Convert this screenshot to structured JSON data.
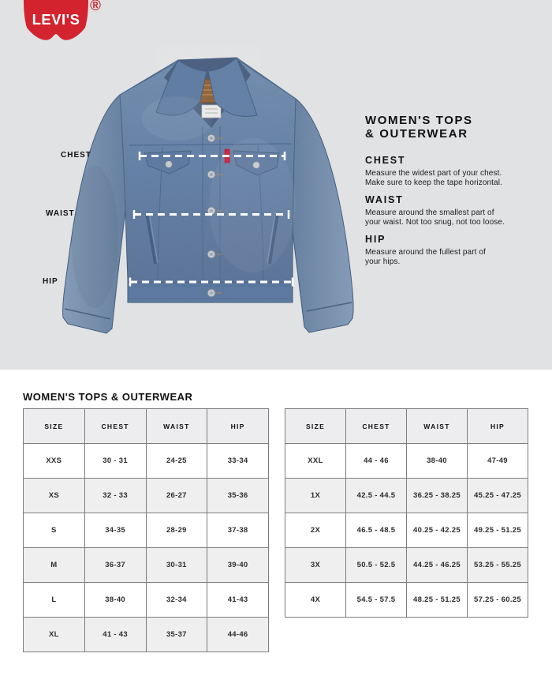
{
  "colors": {
    "hero_background": "#e0e2e3",
    "brand_red": "#d2232e",
    "table_stripe": "#efeff0",
    "table_border": "#7d7d7d",
    "text": "#111111"
  },
  "brand": {
    "logo_text": "LEVI'S",
    "registered_mark": "®"
  },
  "hero": {
    "jacket_image": "denim-trucker-jacket",
    "title_line1": "WOMEN'S TOPS",
    "title_line2": "& OUTERWEAR",
    "measure_labels": {
      "chest": "CHEST",
      "waist": "WAIST",
      "hip": "HIP"
    },
    "sections": [
      {
        "heading": "CHEST",
        "line1": "Measure the widest part of your chest.",
        "line2": "Make sure to keep the tape horizontal."
      },
      {
        "heading": "WAIST",
        "line1": "Measure around the smallest part of",
        "line2": "your waist. Not too snug, not too loose."
      },
      {
        "heading": "HIP",
        "line1": "Measure around the fullest part of",
        "line2": "your hips."
      }
    ]
  },
  "size_chart": {
    "heading": "WOMEN'S TOPS & OUTERWEAR",
    "columns": [
      "SIZE",
      "CHEST",
      "WAIST",
      "HIP"
    ],
    "tables": [
      {
        "name": "standard-sizes",
        "rows": [
          [
            "XXS",
            "30 - 31",
            "24-25",
            "33-34"
          ],
          [
            "XS",
            "32 - 33",
            "26-27",
            "35-36"
          ],
          [
            "S",
            "34-35",
            "28-29",
            "37-38"
          ],
          [
            "M",
            "36-37",
            "30-31",
            "39-40"
          ],
          [
            "L",
            "38-40",
            "32-34",
            "41-43"
          ],
          [
            "XL",
            "41 - 43",
            "35-37",
            "44-46"
          ]
        ]
      },
      {
        "name": "plus-sizes",
        "rows": [
          [
            "XXL",
            "44 - 46",
            "38-40",
            "47-49"
          ],
          [
            "1X",
            "42.5 - 44.5",
            "36.25 - 38.25",
            "45.25 - 47.25"
          ],
          [
            "2X",
            "46.5 - 48.5",
            "40.25 - 42.25",
            "49.25 - 51.25"
          ],
          [
            "3X",
            "50.5 - 52.5",
            "44.25 - 46.25",
            "53.25 - 55.25"
          ],
          [
            "4X",
            "54.5 - 57.5",
            "48.25 - 51.25",
            "57.25 - 60.25"
          ]
        ]
      }
    ]
  }
}
